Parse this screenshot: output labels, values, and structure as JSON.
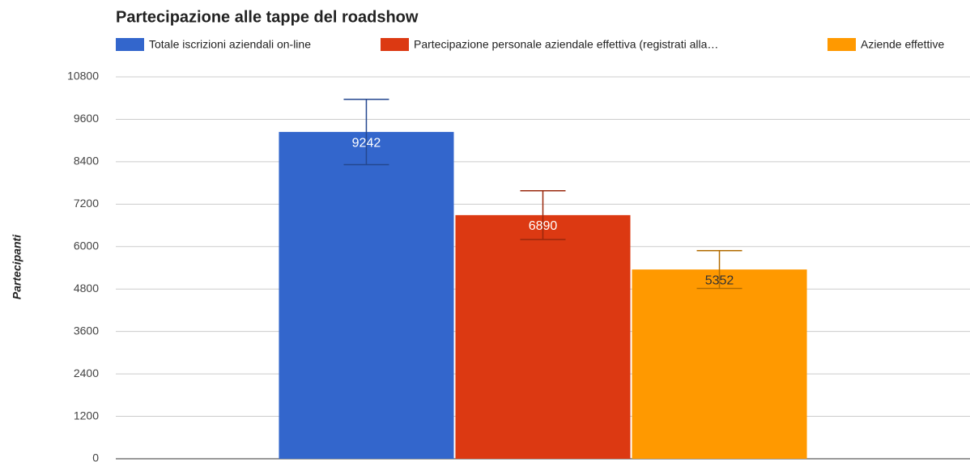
{
  "chart_data": {
    "type": "bar",
    "title": "Partecipazione alle tappe del roadshow",
    "y_label": "Partecipanti",
    "categories": [
      null
    ],
    "series": [
      {
        "name": "Totale iscrizioni aziendali on-line",
        "color": "#3366cc",
        "label_color": "#ffffff",
        "values": [
          9242
        ],
        "errors": [
          924
        ]
      },
      {
        "name": "Partecipazione personale aziendale effettiva (registrati alla…",
        "color": "#dc3912",
        "label_color": "#ffffff",
        "values": [
          6890
        ],
        "errors": [
          689
        ]
      },
      {
        "name": "Aziende effettive",
        "color": "#ff9900",
        "label_color": "#333333",
        "values": [
          5352
        ],
        "errors": [
          535
        ]
      }
    ],
    "ylim": [
      0,
      10800
    ],
    "yticks": [
      0,
      1200,
      2400,
      3600,
      4800,
      6000,
      7200,
      8400,
      9600,
      10800
    ],
    "grid": true,
    "legend": "top"
  }
}
